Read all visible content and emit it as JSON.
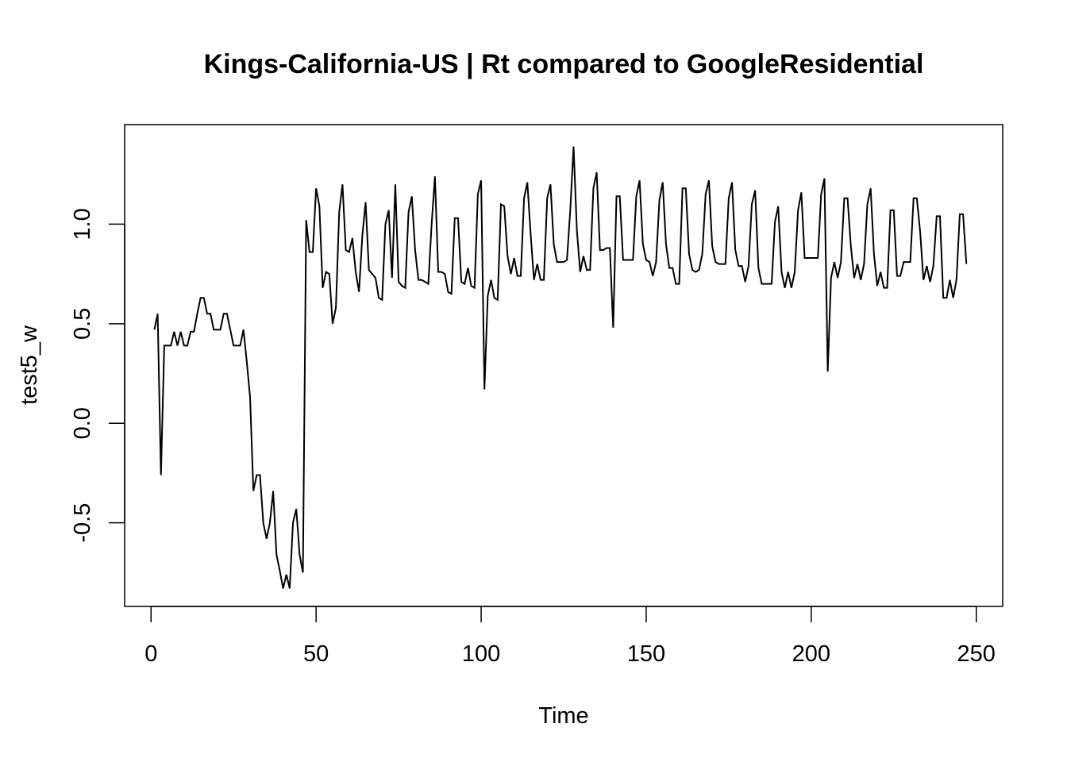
{
  "chart_data": {
    "type": "line",
    "title": "Kings-California-US | Rt compared to GoogleResidential",
    "xlabel": "Time",
    "ylabel": "test5_w",
    "xlim": [
      -8,
      258
    ],
    "ylim": [
      -0.92,
      1.5
    ],
    "x_ticks": [
      0,
      50,
      100,
      150,
      200,
      250
    ],
    "y_ticks": [
      -0.5,
      0.0,
      0.5,
      1.0
    ],
    "x_tick_labels": [
      "0",
      "50",
      "100",
      "150",
      "200",
      "250"
    ],
    "y_tick_labels": [
      "-0.5",
      "0.0",
      "0.5",
      "1.0"
    ],
    "grid": false,
    "series": [
      {
        "x_start": 1,
        "x_step": 1,
        "values": [
          0.47,
          0.55,
          -0.26,
          0.39,
          0.39,
          0.39,
          0.46,
          0.39,
          0.46,
          0.39,
          0.39,
          0.46,
          0.46,
          0.55,
          0.63,
          0.63,
          0.55,
          0.55,
          0.47,
          0.47,
          0.47,
          0.55,
          0.55,
          0.47,
          0.39,
          0.39,
          0.39,
          0.47,
          0.31,
          0.13,
          -0.34,
          -0.26,
          -0.26,
          -0.5,
          -0.58,
          -0.5,
          -0.34,
          -0.66,
          -0.74,
          -0.83,
          -0.76,
          -0.83,
          -0.5,
          -0.43,
          -0.66,
          -0.75,
          1.02,
          0.86,
          0.86,
          1.18,
          1.09,
          0.68,
          0.76,
          0.75,
          0.5,
          0.58,
          1.06,
          1.2,
          0.87,
          0.86,
          0.93,
          0.76,
          0.66,
          0.94,
          1.11,
          0.77,
          0.75,
          0.73,
          0.63,
          0.62,
          1.0,
          1.07,
          0.73,
          1.2,
          0.71,
          0.69,
          0.68,
          1.06,
          1.14,
          0.87,
          0.72,
          0.72,
          0.71,
          0.7,
          1.0,
          1.24,
          0.76,
          0.76,
          0.75,
          0.66,
          0.65,
          1.03,
          1.03,
          0.71,
          0.7,
          0.78,
          0.69,
          0.68,
          1.15,
          1.22,
          0.17,
          0.64,
          0.72,
          0.63,
          0.62,
          1.1,
          1.09,
          0.84,
          0.75,
          0.83,
          0.74,
          0.74,
          1.13,
          1.21,
          0.95,
          0.72,
          0.8,
          0.72,
          0.72,
          1.13,
          1.2,
          0.9,
          0.81,
          0.81,
          0.81,
          0.82,
          1.07,
          1.39,
          0.97,
          0.76,
          0.84,
          0.77,
          0.77,
          1.18,
          1.26,
          0.87,
          0.87,
          0.88,
          0.88,
          0.48,
          1.14,
          1.14,
          0.82,
          0.82,
          0.82,
          0.82,
          1.14,
          1.22,
          0.9,
          0.82,
          0.81,
          0.74,
          0.81,
          1.12,
          1.21,
          0.9,
          0.78,
          0.78,
          0.7,
          0.7,
          1.18,
          1.18,
          0.85,
          0.77,
          0.76,
          0.77,
          0.85,
          1.15,
          1.22,
          0.89,
          0.81,
          0.8,
          0.8,
          0.8,
          1.13,
          1.21,
          0.87,
          0.79,
          0.79,
          0.71,
          0.79,
          1.1,
          1.17,
          0.78,
          0.7,
          0.7,
          0.7,
          0.7,
          1.01,
          1.09,
          0.76,
          0.68,
          0.76,
          0.68,
          0.76,
          1.07,
          1.16,
          0.83,
          0.83,
          0.83,
          0.83,
          0.83,
          1.15,
          1.23,
          0.26,
          0.73,
          0.81,
          0.73,
          0.81,
          1.13,
          1.13,
          0.89,
          0.73,
          0.8,
          0.72,
          0.8,
          1.1,
          1.18,
          0.85,
          0.69,
          0.76,
          0.68,
          0.68,
          1.07,
          1.07,
          0.74,
          0.74,
          0.81,
          0.81,
          0.81,
          1.13,
          1.13,
          0.96,
          0.72,
          0.79,
          0.71,
          0.79,
          1.04,
          1.04,
          0.63,
          0.63,
          0.72,
          0.63,
          0.72,
          1.05,
          1.05,
          0.8
        ]
      }
    ]
  }
}
